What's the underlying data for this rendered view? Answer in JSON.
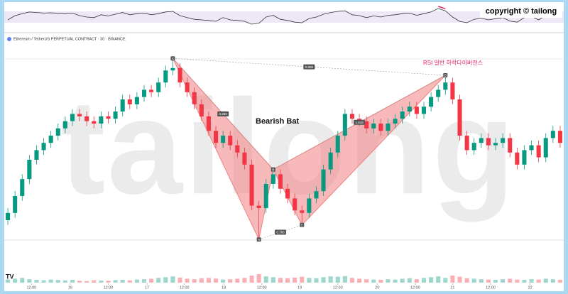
{
  "chart_data": {
    "type": "candlestick",
    "title": "Ethereum / TetherUS PERPETUAL CONTRACT · 30 · BINANCE",
    "copyright": "copyright © tailong",
    "watermark": "tailong",
    "annotation": "RSI 일반 하락다이버전스",
    "up_color": "#089981",
    "down_color": "#f23645",
    "xlim": [
      0,
      78
    ],
    "ylim": [
      0,
      100
    ],
    "xticks": [
      {
        "value": 3.8,
        "label": "12:00"
      },
      {
        "value": 9.2,
        "label": "16"
      },
      {
        "value": 14.5,
        "label": "12:00"
      },
      {
        "value": 19.9,
        "label": "17"
      },
      {
        "value": 25.1,
        "label": "12:00"
      },
      {
        "value": 30.6,
        "label": "18"
      },
      {
        "value": 35.9,
        "label": "12:00"
      },
      {
        "value": 41.2,
        "label": "19"
      },
      {
        "value": 46.5,
        "label": "12:00"
      },
      {
        "value": 52.0,
        "label": "20"
      },
      {
        "value": 57.3,
        "label": "12:00"
      },
      {
        "value": 62.5,
        "label": "21"
      },
      {
        "value": 67.8,
        "label": "12:00"
      },
      {
        "value": 73.3,
        "label": "22"
      }
    ],
    "candles": [
      [
        25,
        30,
        23,
        28
      ],
      [
        28,
        37,
        26,
        35
      ],
      [
        35,
        44,
        33,
        42
      ],
      [
        42,
        52,
        40,
        50
      ],
      [
        50,
        56,
        48,
        54
      ],
      [
        54,
        59,
        52,
        57
      ],
      [
        57,
        62,
        55,
        60
      ],
      [
        60,
        65,
        58,
        63
      ],
      [
        63,
        68,
        61,
        66
      ],
      [
        66,
        71,
        64,
        69
      ],
      [
        69,
        71,
        66,
        68
      ],
      [
        68,
        70,
        64,
        66
      ],
      [
        66,
        68,
        63,
        65
      ],
      [
        65,
        70,
        63,
        68
      ],
      [
        68,
        70,
        65,
        67
      ],
      [
        67,
        72,
        65,
        70
      ],
      [
        70,
        77,
        68,
        75
      ],
      [
        75,
        77,
        71,
        73
      ],
      [
        73,
        78,
        71,
        76
      ],
      [
        76,
        81,
        74,
        79
      ],
      [
        79,
        81,
        76,
        78
      ],
      [
        78,
        84,
        76,
        82
      ],
      [
        82,
        89,
        80,
        87
      ],
      [
        87,
        92,
        85,
        88
      ],
      [
        88,
        90,
        80,
        82
      ],
      [
        82,
        84,
        76,
        78
      ],
      [
        78,
        80,
        71,
        73
      ],
      [
        73,
        75,
        66,
        68
      ],
      [
        68,
        70,
        60,
        62
      ],
      [
        62,
        64,
        55,
        57
      ],
      [
        57,
        62,
        55,
        60
      ],
      [
        60,
        62,
        54,
        56
      ],
      [
        56,
        58,
        51,
        53
      ],
      [
        53,
        55,
        46,
        48
      ],
      [
        48,
        50,
        29,
        31
      ],
      [
        31,
        33,
        17,
        30
      ],
      [
        30,
        42,
        28,
        40
      ],
      [
        40,
        46,
        38,
        44
      ],
      [
        44,
        46,
        36,
        38
      ],
      [
        38,
        40,
        32,
        34
      ],
      [
        34,
        36,
        27,
        29
      ],
      [
        29,
        31,
        23,
        28
      ],
      [
        28,
        36,
        26,
        34
      ],
      [
        34,
        39,
        32,
        37
      ],
      [
        37,
        48,
        35,
        46
      ],
      [
        46,
        55,
        44,
        53
      ],
      [
        53,
        62,
        51,
        60
      ],
      [
        60,
        71,
        58,
        69
      ],
      [
        69,
        71,
        65,
        67
      ],
      [
        67,
        69,
        64,
        66
      ],
      [
        66,
        68,
        61,
        63
      ],
      [
        63,
        67,
        61,
        65
      ],
      [
        65,
        67,
        60,
        62
      ],
      [
        62,
        67,
        60,
        65
      ],
      [
        65,
        69,
        63,
        67
      ],
      [
        67,
        72,
        65,
        70
      ],
      [
        70,
        74,
        68,
        72
      ],
      [
        72,
        74,
        67,
        69
      ],
      [
        69,
        74,
        67,
        72
      ],
      [
        72,
        78,
        70,
        76
      ],
      [
        76,
        81,
        74,
        79
      ],
      [
        79,
        85,
        77,
        82
      ],
      [
        82,
        84,
        73,
        75
      ],
      [
        75,
        77,
        58,
        60
      ],
      [
        60,
        62,
        52,
        54
      ],
      [
        54,
        59,
        52,
        57
      ],
      [
        57,
        61,
        55,
        59
      ],
      [
        59,
        61,
        54,
        56
      ],
      [
        56,
        59,
        54,
        57
      ],
      [
        57,
        61,
        55,
        59
      ],
      [
        59,
        61,
        51,
        53
      ],
      [
        53,
        55,
        46,
        48
      ],
      [
        48,
        56,
        46,
        54
      ],
      [
        54,
        58,
        52,
        56
      ],
      [
        56,
        58,
        49,
        51
      ],
      [
        51,
        61,
        49,
        59
      ],
      [
        59,
        64,
        57,
        62
      ],
      [
        62,
        64,
        55,
        57
      ]
    ],
    "volume_lim": [
      0,
      100
    ],
    "volume": [
      20,
      25,
      30,
      22,
      18,
      15,
      20,
      17,
      14,
      18,
      12,
      10,
      15,
      13,
      12,
      16,
      18,
      15,
      20,
      22,
      25,
      30,
      35,
      40,
      32,
      25,
      22,
      28,
      30,
      26,
      20,
      22,
      25,
      30,
      45,
      55,
      40,
      35,
      30,
      28,
      32,
      38,
      30,
      28,
      35,
      40,
      38,
      42,
      30,
      25,
      22,
      20,
      18,
      22,
      20,
      25,
      28,
      22,
      30,
      35,
      40,
      30,
      45,
      38,
      28,
      25,
      22,
      20,
      18,
      22,
      25,
      20,
      18,
      22,
      20,
      25,
      22,
      18
    ],
    "rsi_lim": [
      0,
      100
    ],
    "rsi_band": [
      30,
      70
    ],
    "rsi_color": "#333333",
    "rsi": [
      40,
      55,
      62,
      68,
      66,
      64,
      65,
      63,
      62,
      64,
      55,
      50,
      48,
      58,
      54,
      60,
      66,
      58,
      62,
      64,
      58,
      62,
      68,
      70,
      55,
      48,
      42,
      40,
      38,
      35,
      48,
      40,
      38,
      35,
      25,
      28,
      50,
      56,
      42,
      38,
      32,
      30,
      45,
      50,
      60,
      66,
      70,
      72,
      58,
      55,
      48,
      54,
      50,
      56,
      58,
      62,
      64,
      56,
      62,
      68,
      80,
      72,
      50,
      35,
      30,
      42,
      46,
      40,
      44,
      48,
      36,
      32,
      48,
      52,
      40,
      56,
      60,
      50
    ],
    "rsi_divergence": [
      60,
      61
    ],
    "pattern": {
      "name": "Bearish Bat",
      "color": "#f08080",
      "points": [
        {
          "label": "X",
          "x": 23,
          "y": 92
        },
        {
          "label": "A",
          "x": 35,
          "y": 17
        },
        {
          "label": "B",
          "x": 37,
          "y": 46
        },
        {
          "label": "C",
          "x": 41,
          "y": 23
        },
        {
          "label": "D",
          "x": 61,
          "y": 85
        }
      ],
      "ratios": {
        "XB": "0.382",
        "AC": "0.786",
        "BD": "1.618",
        "XD": "0.886"
      }
    }
  }
}
